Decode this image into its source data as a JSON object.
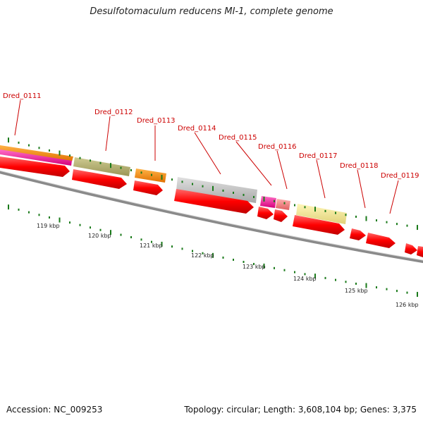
{
  "map": {
    "title": "Desulfotomaculum reducens MI-1, complete genome",
    "accession": "Accession: NC_009253",
    "summary": "Topology: circular; Length: 3,608,104 bp; Genes: 3,375"
  },
  "gene_labels": [
    {
      "name": "Dred_0111",
      "color": "#cc0000"
    },
    {
      "name": "Dred_0112",
      "color": "#cc0000"
    },
    {
      "name": "Dred_0113",
      "color": "#cc0000"
    },
    {
      "name": "Dred_0114",
      "color": "#cc0000"
    },
    {
      "name": "Dred_0115",
      "color": "#cc0000"
    },
    {
      "name": "Dred_0116",
      "color": "#cc0000"
    },
    {
      "name": "Dred_0117",
      "color": "#cc0000"
    },
    {
      "name": "Dred_0118",
      "color": "#cc0000"
    },
    {
      "name": "Dred_0119",
      "color": "#cc0000"
    }
  ],
  "kbp_ticks": [
    "119 kbp",
    "120 kbp",
    "121 kbp",
    "122 kbp",
    "123 kbp",
    "124 kbp",
    "125 kbp",
    "126 kbp"
  ],
  "feature_colors": {
    "cds": "#ff0000",
    "orange": "#ff8c00",
    "pink": "#ff1493",
    "olive": "#b5b06e",
    "grey": "#c0c0c0",
    "salmon": "#f08080",
    "khaki": "#f0e68c",
    "backbone": "#808080",
    "tick": "#1a7a1a"
  }
}
